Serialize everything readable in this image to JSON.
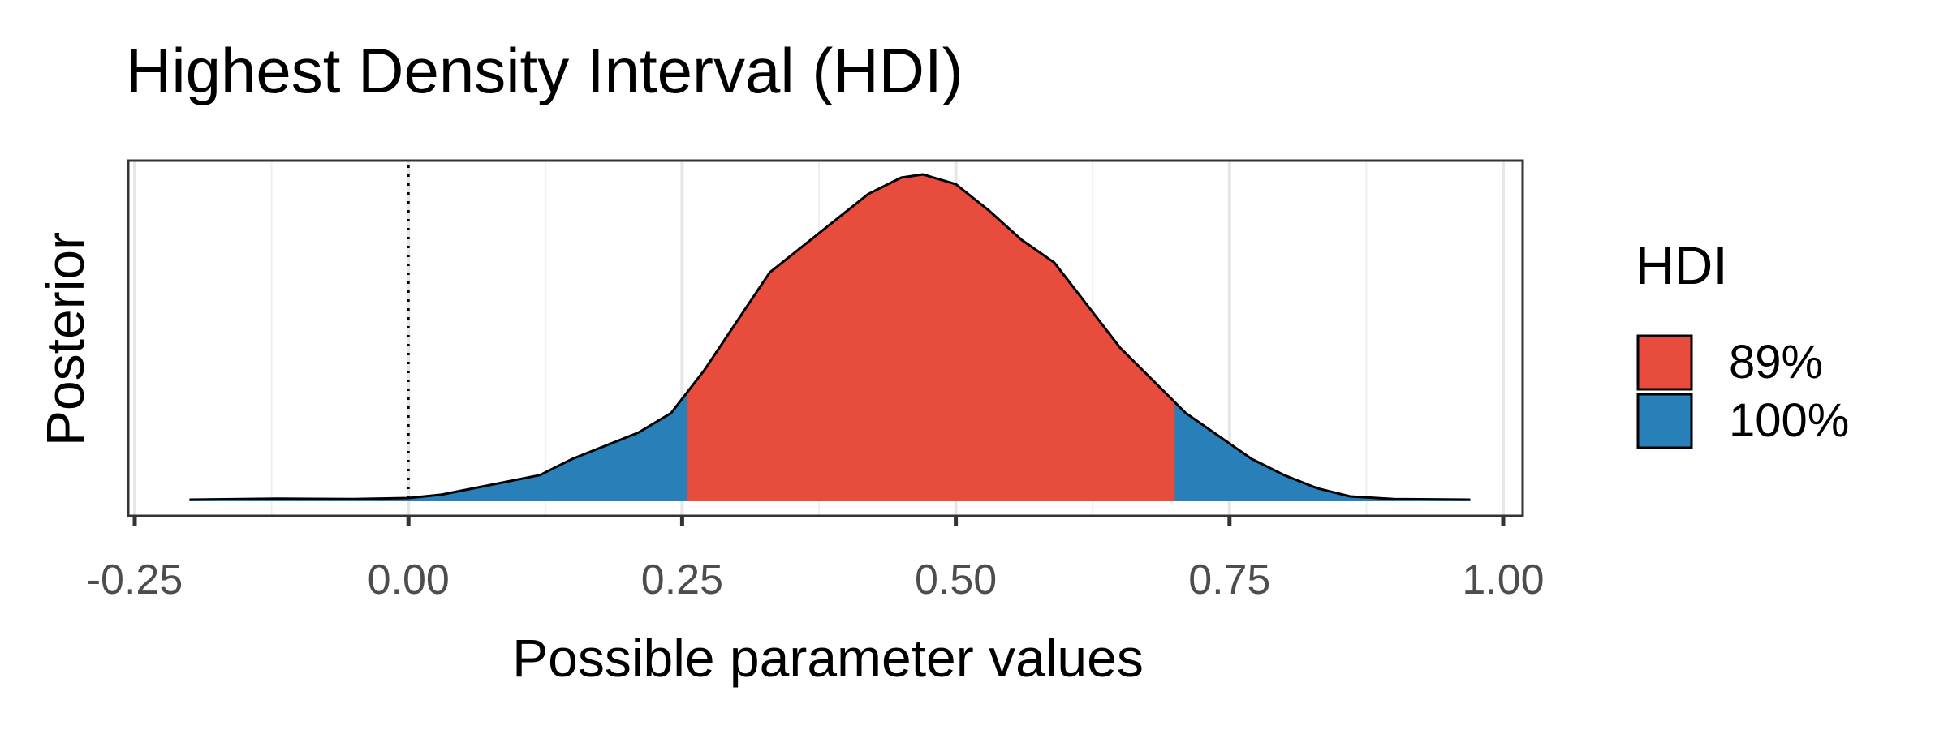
{
  "chart_data": {
    "type": "area",
    "title": "Highest Density Interval (HDI)",
    "xlabel": "Possible parameter values",
    "ylabel": "Posterior",
    "xlim": [
      -0.25,
      1.0
    ],
    "xticks": [
      -0.25,
      0.0,
      0.25,
      0.5,
      0.75,
      1.0
    ],
    "xtick_labels": [
      "-0.25",
      "0.00",
      "0.25",
      "0.50",
      "0.75",
      "1.00"
    ],
    "grid": true,
    "reference_line": {
      "x": 0.0,
      "style": "dotted"
    },
    "density": {
      "x": [
        -0.2,
        -0.12,
        -0.05,
        0.0,
        0.03,
        0.06,
        0.09,
        0.12,
        0.15,
        0.18,
        0.21,
        0.24,
        0.27,
        0.3,
        0.33,
        0.36,
        0.39,
        0.42,
        0.45,
        0.47,
        0.5,
        0.53,
        0.56,
        0.59,
        0.62,
        0.65,
        0.68,
        0.71,
        0.74,
        0.77,
        0.8,
        0.83,
        0.86,
        0.9,
        0.97
      ],
      "y": [
        0.005,
        0.008,
        0.007,
        0.01,
        0.02,
        0.04,
        0.06,
        0.08,
        0.13,
        0.17,
        0.21,
        0.27,
        0.4,
        0.55,
        0.7,
        0.78,
        0.86,
        0.94,
        0.99,
        1.0,
        0.97,
        0.89,
        0.8,
        0.73,
        0.6,
        0.47,
        0.37,
        0.27,
        0.2,
        0.13,
        0.08,
        0.04,
        0.015,
        0.007,
        0.005
      ]
    },
    "hdi": [
      {
        "name": "89%",
        "range": [
          0.255,
          0.7
        ],
        "color": "#E74C3C"
      },
      {
        "name": "100%",
        "range": [
          -0.2,
          0.97
        ],
        "color": "#2980B9"
      }
    ],
    "legend": {
      "title": "HDI",
      "position": "right"
    }
  }
}
